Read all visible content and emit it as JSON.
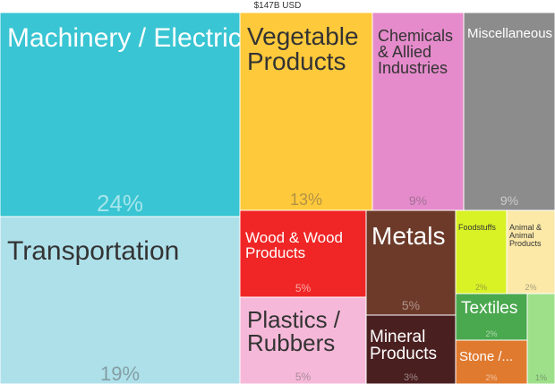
{
  "header": {
    "total": "$147B USD"
  },
  "chart_data": {
    "type": "treemap",
    "title": "",
    "total_label": "$147B USD",
    "items": [
      {
        "label": "Machinery / Electrical",
        "share_pct": 24,
        "pct_label": "24%",
        "color": "#39C5D3"
      },
      {
        "label": "Transportation",
        "share_pct": 19,
        "pct_label": "19%",
        "color": "#AEE0EA"
      },
      {
        "label": "Vegetable Products",
        "share_pct": 13,
        "pct_label": "13%",
        "color": "#FFC93C"
      },
      {
        "label": "Chemicals & Allied Industries",
        "share_pct": 9,
        "pct_label": "9%",
        "color": "#E58BCB"
      },
      {
        "label": "Miscellaneous",
        "share_pct": 9,
        "pct_label": "9%",
        "color": "#8C8C8C"
      },
      {
        "label": "Wood & Wood Products",
        "share_pct": 5,
        "pct_label": "5%",
        "color": "#F02626"
      },
      {
        "label": "Metals",
        "share_pct": 5,
        "pct_label": "5%",
        "color": "#6D3A2A"
      },
      {
        "label": "Plastics / Rubbers",
        "share_pct": 5,
        "pct_label": "5%",
        "color": "#F5B8D8"
      },
      {
        "label": "Foodstuffs",
        "share_pct": 2,
        "pct_label": "2%",
        "color": "#D8F226"
      },
      {
        "label": "Animal & Animal Products",
        "share_pct": 2,
        "pct_label": "2%",
        "color": "#FCE9A8"
      },
      {
        "label": "Mineral Products",
        "share_pct": 3,
        "pct_label": "3%",
        "color": "#4A1F20"
      },
      {
        "label": "Textiles",
        "share_pct": 2,
        "pct_label": "2%",
        "color": "#4AA84E"
      },
      {
        "label": "Stone /...",
        "share_pct": 2,
        "pct_label": "2%",
        "color": "#E07A2F"
      },
      {
        "label": "",
        "share_pct": 1,
        "pct_label": "1%",
        "color": "#9EE08A"
      }
    ]
  }
}
